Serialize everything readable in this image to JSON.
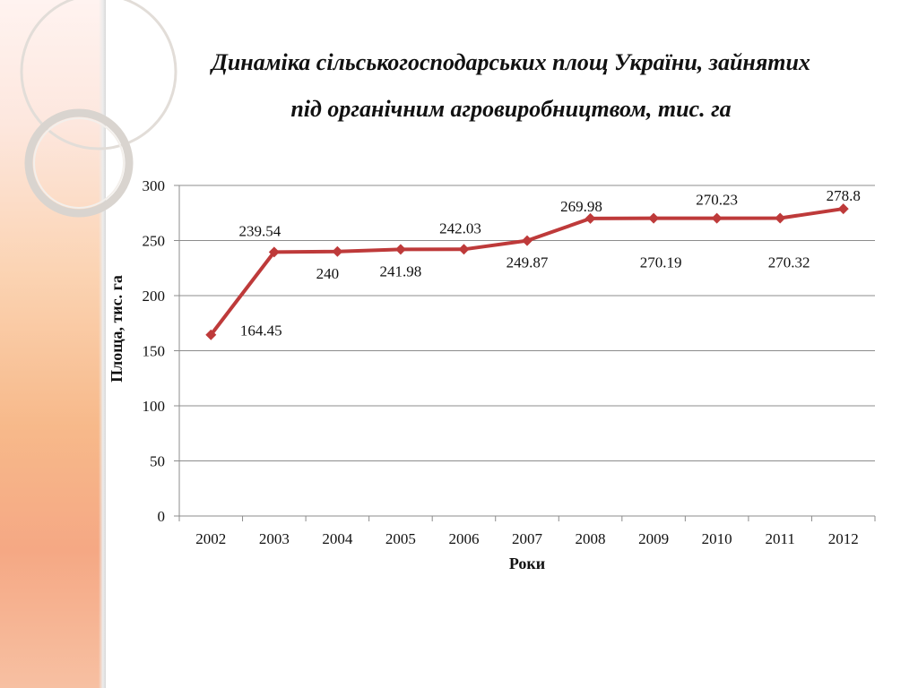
{
  "chart_data": {
    "type": "line",
    "title_line1": "Динаміка сільськогосподарських площ України, зайнятих",
    "title_line2": "під органічним агровиробництвом, тис. га",
    "xlabel": "Роки",
    "ylabel": "Площа, тис. га",
    "ylim": [
      0,
      300
    ],
    "yticks": [
      "0",
      "50",
      "100",
      "150",
      "200",
      "250",
      "300"
    ],
    "categories": [
      "2002",
      "2003",
      "2004",
      "2005",
      "2006",
      "2007",
      "2008",
      "2009",
      "2010",
      "2011",
      "2012"
    ],
    "values": [
      164.45,
      239.54,
      240,
      241.98,
      242.03,
      249.87,
      269.98,
      270.19,
      270.23,
      270.32,
      278.8
    ],
    "data_labels": [
      "164.45",
      "239.54",
      "240",
      "241.98",
      "242.03",
      "249.87",
      "269.98",
      "270.19",
      "270.23",
      "270.32",
      "278.8"
    ],
    "series_color": "#be3a3a",
    "grid": true,
    "legend": "none"
  }
}
